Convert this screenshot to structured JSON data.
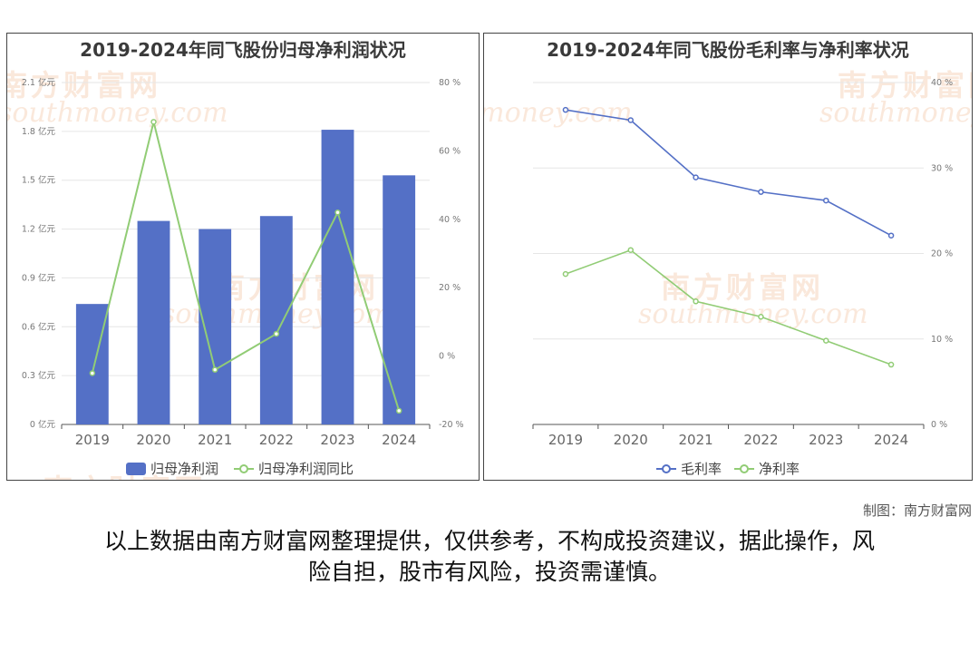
{
  "credit": "制图：南方财富网",
  "disclaimer_line1": "以上数据由南方财富网整理提供，仅供参考，不构成投资建议，据此操作，风",
  "disclaimer_line2": "险自担，股市有风险，投资需谨慎。",
  "watermark_cn": "南方财富网",
  "watermark_en": "southmoney.com",
  "chart_data": [
    {
      "type": "bar",
      "title": "2019-2024年同飞股份归母净利润状况",
      "categories": [
        "2019",
        "2020",
        "2021",
        "2022",
        "2023",
        "2024"
      ],
      "series": [
        {
          "name": "归母净利润",
          "type": "bar",
          "axis": "left",
          "color": "#5470c6",
          "values": [
            0.74,
            1.25,
            1.2,
            1.28,
            1.81,
            1.53
          ]
        },
        {
          "name": "归母净利润同比",
          "type": "line",
          "axis": "right",
          "color": "#91cc75",
          "values": [
            -5,
            68.5,
            -4,
            6.5,
            42,
            -16
          ]
        }
      ],
      "y_left": {
        "ticks": [
          "0 亿元",
          "0.3 亿元",
          "0.6 亿元",
          "0.9 亿元",
          "1.2 亿元",
          "1.5 亿元",
          "1.8 亿元",
          "2.1 亿元"
        ],
        "min": 0,
        "max": 2.1
      },
      "y_right": {
        "ticks": [
          "-20 %",
          "0 %",
          "20 %",
          "40 %",
          "60 %",
          "80 %"
        ],
        "min": -20,
        "max": 80
      },
      "legend": "bottom"
    },
    {
      "type": "line",
      "title": "2019-2024年同飞股份毛利率与净利率状况",
      "categories": [
        "2019",
        "2020",
        "2021",
        "2022",
        "2023",
        "2024"
      ],
      "series": [
        {
          "name": "毛利率",
          "color": "#5470c6",
          "values": [
            36.8,
            35.6,
            28.9,
            27.2,
            26.2,
            22.1
          ]
        },
        {
          "name": "净利率",
          "color": "#91cc75",
          "values": [
            17.6,
            20.4,
            14.4,
            12.6,
            9.8,
            7.0
          ]
        }
      ],
      "y_right": {
        "ticks": [
          "0 %",
          "10 %",
          "20 %",
          "30 %",
          "40 %"
        ],
        "min": 0,
        "max": 40
      },
      "legend": "bottom"
    }
  ]
}
